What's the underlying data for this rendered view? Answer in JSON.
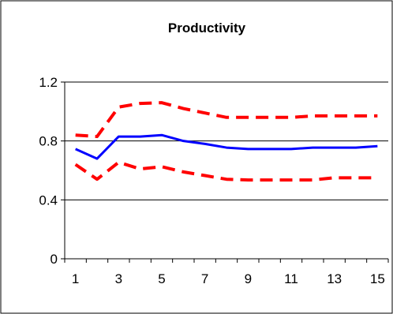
{
  "chart_data": {
    "type": "line",
    "title": "Productivity",
    "xlabel": "",
    "ylabel": "",
    "x": [
      1,
      2,
      3,
      4,
      5,
      6,
      7,
      8,
      9,
      10,
      11,
      12,
      13,
      14,
      15
    ],
    "x_tick_labels": [
      "1",
      "3",
      "5",
      "7",
      "9",
      "11",
      "13",
      "15"
    ],
    "y_tick_labels": [
      "0",
      "0.4",
      "0.8",
      "1.2"
    ],
    "ylim": [
      0,
      1.2
    ],
    "grid": "horizontal",
    "legend": "none",
    "series": [
      {
        "style": "solid",
        "color": "#0000ff",
        "values": [
          0.745,
          0.68,
          0.83,
          0.83,
          0.84,
          0.8,
          0.78,
          0.755,
          0.745,
          0.745,
          0.745,
          0.755,
          0.755,
          0.755,
          0.765
        ]
      },
      {
        "style": "dashed",
        "color": "#ff0000",
        "values": [
          0.84,
          0.83,
          1.03,
          1.055,
          1.06,
          1.02,
          0.99,
          0.96,
          0.96,
          0.96,
          0.96,
          0.97,
          0.97,
          0.97,
          0.97
        ]
      },
      {
        "style": "dashed",
        "color": "#ff0000",
        "values": [
          0.64,
          0.54,
          0.655,
          0.61,
          0.625,
          0.59,
          0.565,
          0.54,
          0.535,
          0.535,
          0.535,
          0.535,
          0.55,
          0.55,
          0.55
        ]
      }
    ]
  }
}
